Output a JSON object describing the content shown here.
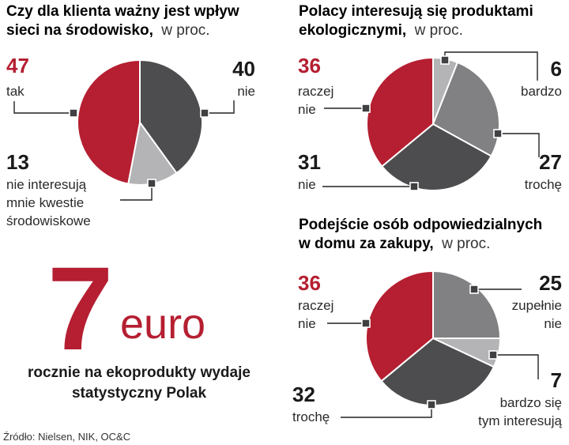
{
  "colors": {
    "red": "#b51f31",
    "dark": "#4d4d4f",
    "mid": "#818183",
    "light": "#b4b4b6",
    "leader": "#222222"
  },
  "chart_data": [
    {
      "type": "pie",
      "title": "Czy dla klienta ważny jest wpływ sieci na środowisko,",
      "title_line1": "Czy dla klienta ważny jest wpływ",
      "title_line2": "sieci na środowisko,",
      "unit": "w proc.",
      "series": [
        {
          "name": "nie",
          "value": 40,
          "label_lines": [
            "nie"
          ],
          "color_key": "dark",
          "value_color": "dark"
        },
        {
          "name": "nie interesują mnie kwestie środowiskowe",
          "value": 13,
          "label_lines": [
            "nie interesują",
            "mnie kwestie",
            "środowiskowe"
          ],
          "color_key": "light",
          "value_color": "dark"
        },
        {
          "name": "tak",
          "value": 47,
          "label_lines": [
            "tak"
          ],
          "color_key": "red",
          "value_color": "red"
        }
      ]
    },
    {
      "type": "pie",
      "title": "Polacy interesują się produktami ekologicznymi,",
      "title_line1": "Polacy interesują się produktami",
      "title_line2": "ekologicznymi,",
      "unit": "w proc.",
      "series": [
        {
          "name": "bardzo",
          "value": 6,
          "label_lines": [
            "bardzo"
          ],
          "color_key": "light",
          "value_color": "dark"
        },
        {
          "name": "trochę",
          "value": 27,
          "label_lines": [
            "trochę"
          ],
          "color_key": "mid",
          "value_color": "dark"
        },
        {
          "name": "nie",
          "value": 31,
          "label_lines": [
            "nie"
          ],
          "color_key": "dark",
          "value_color": "dark"
        },
        {
          "name": "raczej nie",
          "value": 36,
          "label_lines": [
            "raczej",
            "nie"
          ],
          "color_key": "red",
          "value_color": "red"
        }
      ]
    },
    {
      "type": "pie",
      "title": "Podejście osób odpowiedzialnych w domu za zakupy,",
      "title_line1": "Podejście osób odpowiedzialnych",
      "title_line2": "w domu za zakupy,",
      "unit": "w proc.",
      "series": [
        {
          "name": "zupełnie nie",
          "value": 25,
          "label_lines": [
            "zupełnie",
            "nie"
          ],
          "color_key": "mid",
          "value_color": "dark"
        },
        {
          "name": "bardzo się tym interesują",
          "value": 7,
          "label_lines": [
            "bardzo się",
            "tym interesują"
          ],
          "color_key": "light",
          "value_color": "dark"
        },
        {
          "name": "trochę",
          "value": 32,
          "label_lines": [
            "trochę"
          ],
          "color_key": "dark",
          "value_color": "dark"
        },
        {
          "name": "raczej nie",
          "value": 36,
          "label_lines": [
            "raczej",
            "nie"
          ],
          "color_key": "red",
          "value_color": "red"
        }
      ]
    }
  ],
  "highlight": {
    "number": "7",
    "unit": "euro",
    "caption_line1": "rocznie na ekoprodukty wydaje",
    "caption_line2": "statystyczny Polak"
  },
  "source": "Źródło: Nielsen, NIK, OC&C"
}
